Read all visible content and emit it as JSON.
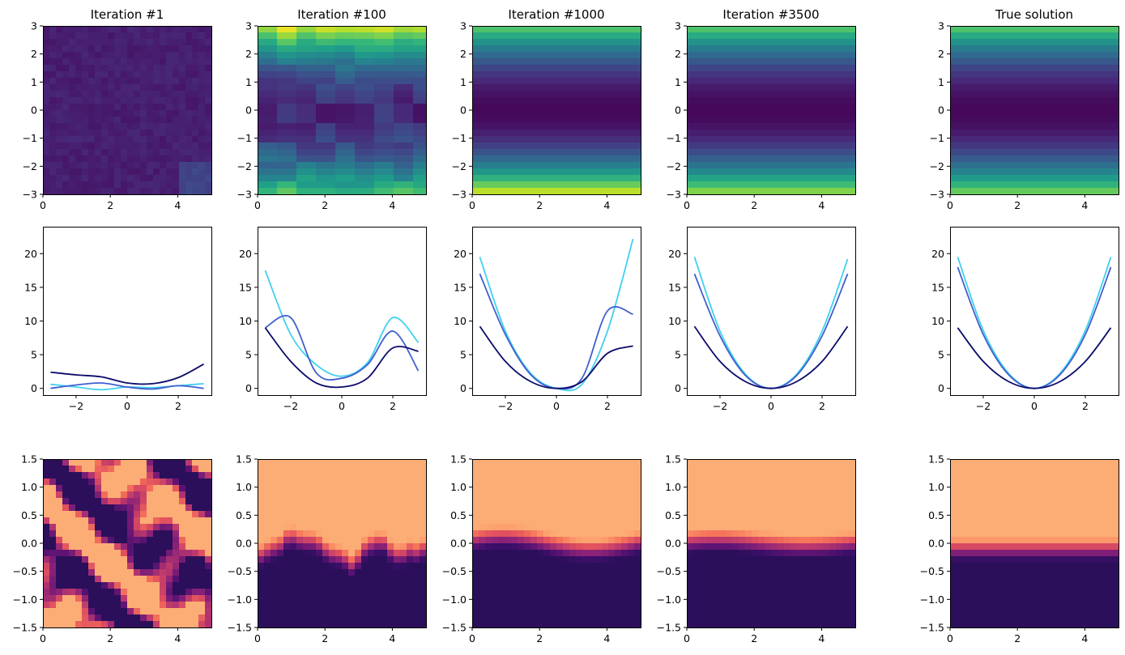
{
  "chart_data": {
    "type": "figure-grid",
    "columns": [
      {
        "title": "Iteration #1"
      },
      {
        "title": "Iteration #100"
      },
      {
        "title": "Iteration #1000"
      },
      {
        "title": "Iteration #3500"
      },
      {
        "title": "True solution"
      }
    ],
    "rows": [
      {
        "type": "heatmap",
        "colormap": "viridis",
        "xlim": [
          0,
          5
        ],
        "ylim": [
          -3,
          3
        ],
        "xticks": [
          0,
          2,
          4
        ],
        "xtick_labels": [
          "0",
          "2",
          "4"
        ],
        "yticks": [
          3,
          2,
          1,
          0,
          -1,
          -2,
          -3
        ],
        "ytick_labels": [
          "3",
          "2",
          "1",
          "0",
          "−1",
          "−2",
          "−3"
        ],
        "panels": [
          {
            "pattern": "noise",
            "intensity": 0.06
          },
          {
            "pattern": "edges-noisy",
            "top": 0.85,
            "bottom": 0.6
          },
          {
            "pattern": "edges",
            "top": 0.75,
            "bottom": 0.95
          },
          {
            "pattern": "edges",
            "top": 0.75,
            "bottom": 0.85
          },
          {
            "pattern": "edges",
            "top": 0.75,
            "bottom": 0.8
          }
        ]
      },
      {
        "type": "line",
        "xlim": [
          -3.3,
          3.3
        ],
        "ylim": [
          -1,
          24
        ],
        "xticks": [
          -2,
          0,
          2
        ],
        "xtick_labels": [
          "−2",
          "0",
          "2"
        ],
        "yticks": [
          0,
          5,
          10,
          15,
          20
        ],
        "ytick_labels": [
          "0",
          "5",
          "10",
          "15",
          "20"
        ],
        "colors": [
          "#40d0f0",
          "#3f5fcf",
          "#0b0b6b"
        ],
        "panels": [
          {
            "x": [
              -3,
              -2,
              -1,
              0,
              1,
              2,
              3
            ],
            "series": [
              {
                "name": "light",
                "values": [
                  0.6,
                  0.2,
                  -0.2,
                  0.2,
                  0.1,
                  0.4,
                  0.7
                ]
              },
              {
                "name": "mid",
                "values": [
                  0.0,
                  0.5,
                  0.8,
                  0.2,
                  -0.1,
                  0.4,
                  0.0
                ]
              },
              {
                "name": "dark",
                "values": [
                  2.4,
                  2.0,
                  1.7,
                  0.8,
                  0.7,
                  1.6,
                  3.6
                ]
              }
            ]
          },
          {
            "x": [
              -3,
              -2,
              -1,
              0,
              1,
              2,
              3
            ],
            "series": [
              {
                "name": "light",
                "values": [
                  17.5,
                  8.0,
                  3.5,
                  1.8,
                  3.8,
                  10.5,
                  6.8
                ]
              },
              {
                "name": "mid",
                "values": [
                  9.0,
                  10.5,
                  2.3,
                  1.5,
                  3.5,
                  8.5,
                  2.6
                ]
              },
              {
                "name": "dark",
                "values": [
                  9.0,
                  4.0,
                  0.8,
                  0.2,
                  1.5,
                  6.0,
                  5.5
                ]
              }
            ]
          },
          {
            "x": [
              -3,
              -2,
              -1,
              0,
              1,
              2,
              3
            ],
            "series": [
              {
                "name": "light",
                "values": [
                  19.5,
                  8.5,
                  2.2,
                  0.0,
                  0.6,
                  8.5,
                  22.2
                ]
              },
              {
                "name": "mid",
                "values": [
                  17.0,
                  8.0,
                  2.0,
                  0.0,
                  1.5,
                  11.5,
                  11.0
                ]
              },
              {
                "name": "dark",
                "values": [
                  9.2,
                  4.0,
                  1.0,
                  0.0,
                  1.0,
                  5.2,
                  6.3
                ]
              }
            ]
          },
          {
            "x": [
              -3,
              -2,
              -1,
              0,
              1,
              2,
              3
            ],
            "series": [
              {
                "name": "light",
                "values": [
                  19.5,
                  8.5,
                  2.1,
                  0.0,
                  2.1,
                  8.5,
                  19.2
                ]
              },
              {
                "name": "mid",
                "values": [
                  17.0,
                  7.8,
                  1.9,
                  0.0,
                  1.9,
                  7.8,
                  17.0
                ]
              },
              {
                "name": "dark",
                "values": [
                  9.2,
                  4.0,
                  1.0,
                  0.0,
                  1.0,
                  4.0,
                  9.2
                ]
              }
            ]
          },
          {
            "x": [
              -3,
              -2,
              -1,
              0,
              1,
              2,
              3
            ],
            "series": [
              {
                "name": "light",
                "values": [
                  19.5,
                  8.6,
                  2.2,
                  0.0,
                  2.2,
                  8.6,
                  19.5
                ]
              },
              {
                "name": "mid",
                "values": [
                  18.0,
                  8.0,
                  2.0,
                  0.0,
                  2.0,
                  8.0,
                  18.0
                ]
              },
              {
                "name": "dark",
                "values": [
                  9.0,
                  4.0,
                  1.0,
                  0.0,
                  1.0,
                  4.0,
                  9.0
                ]
              }
            ]
          }
        ]
      },
      {
        "type": "heatmap",
        "colormap": "magma",
        "xlim": [
          0,
          5
        ],
        "ylim": [
          -1.5,
          1.5
        ],
        "xticks": [
          0,
          2,
          4
        ],
        "xtick_labels": [
          "0",
          "2",
          "4"
        ],
        "yticks": [
          1.5,
          1.0,
          0.5,
          0.0,
          -0.5,
          -1.0,
          -1.5
        ],
        "ytick_labels": [
          "1.5",
          "1.0",
          "0.5",
          "0.0",
          "−0.5",
          "−1.0",
          "−1.5"
        ],
        "panels": [
          {
            "pattern": "blobs"
          },
          {
            "pattern": "step-rough",
            "boundary": -0.2
          },
          {
            "pattern": "step-wavy",
            "boundary": 0.0
          },
          {
            "pattern": "step-wavy-smooth",
            "boundary": 0.0
          },
          {
            "pattern": "step",
            "boundary": -0.1
          }
        ]
      }
    ]
  }
}
